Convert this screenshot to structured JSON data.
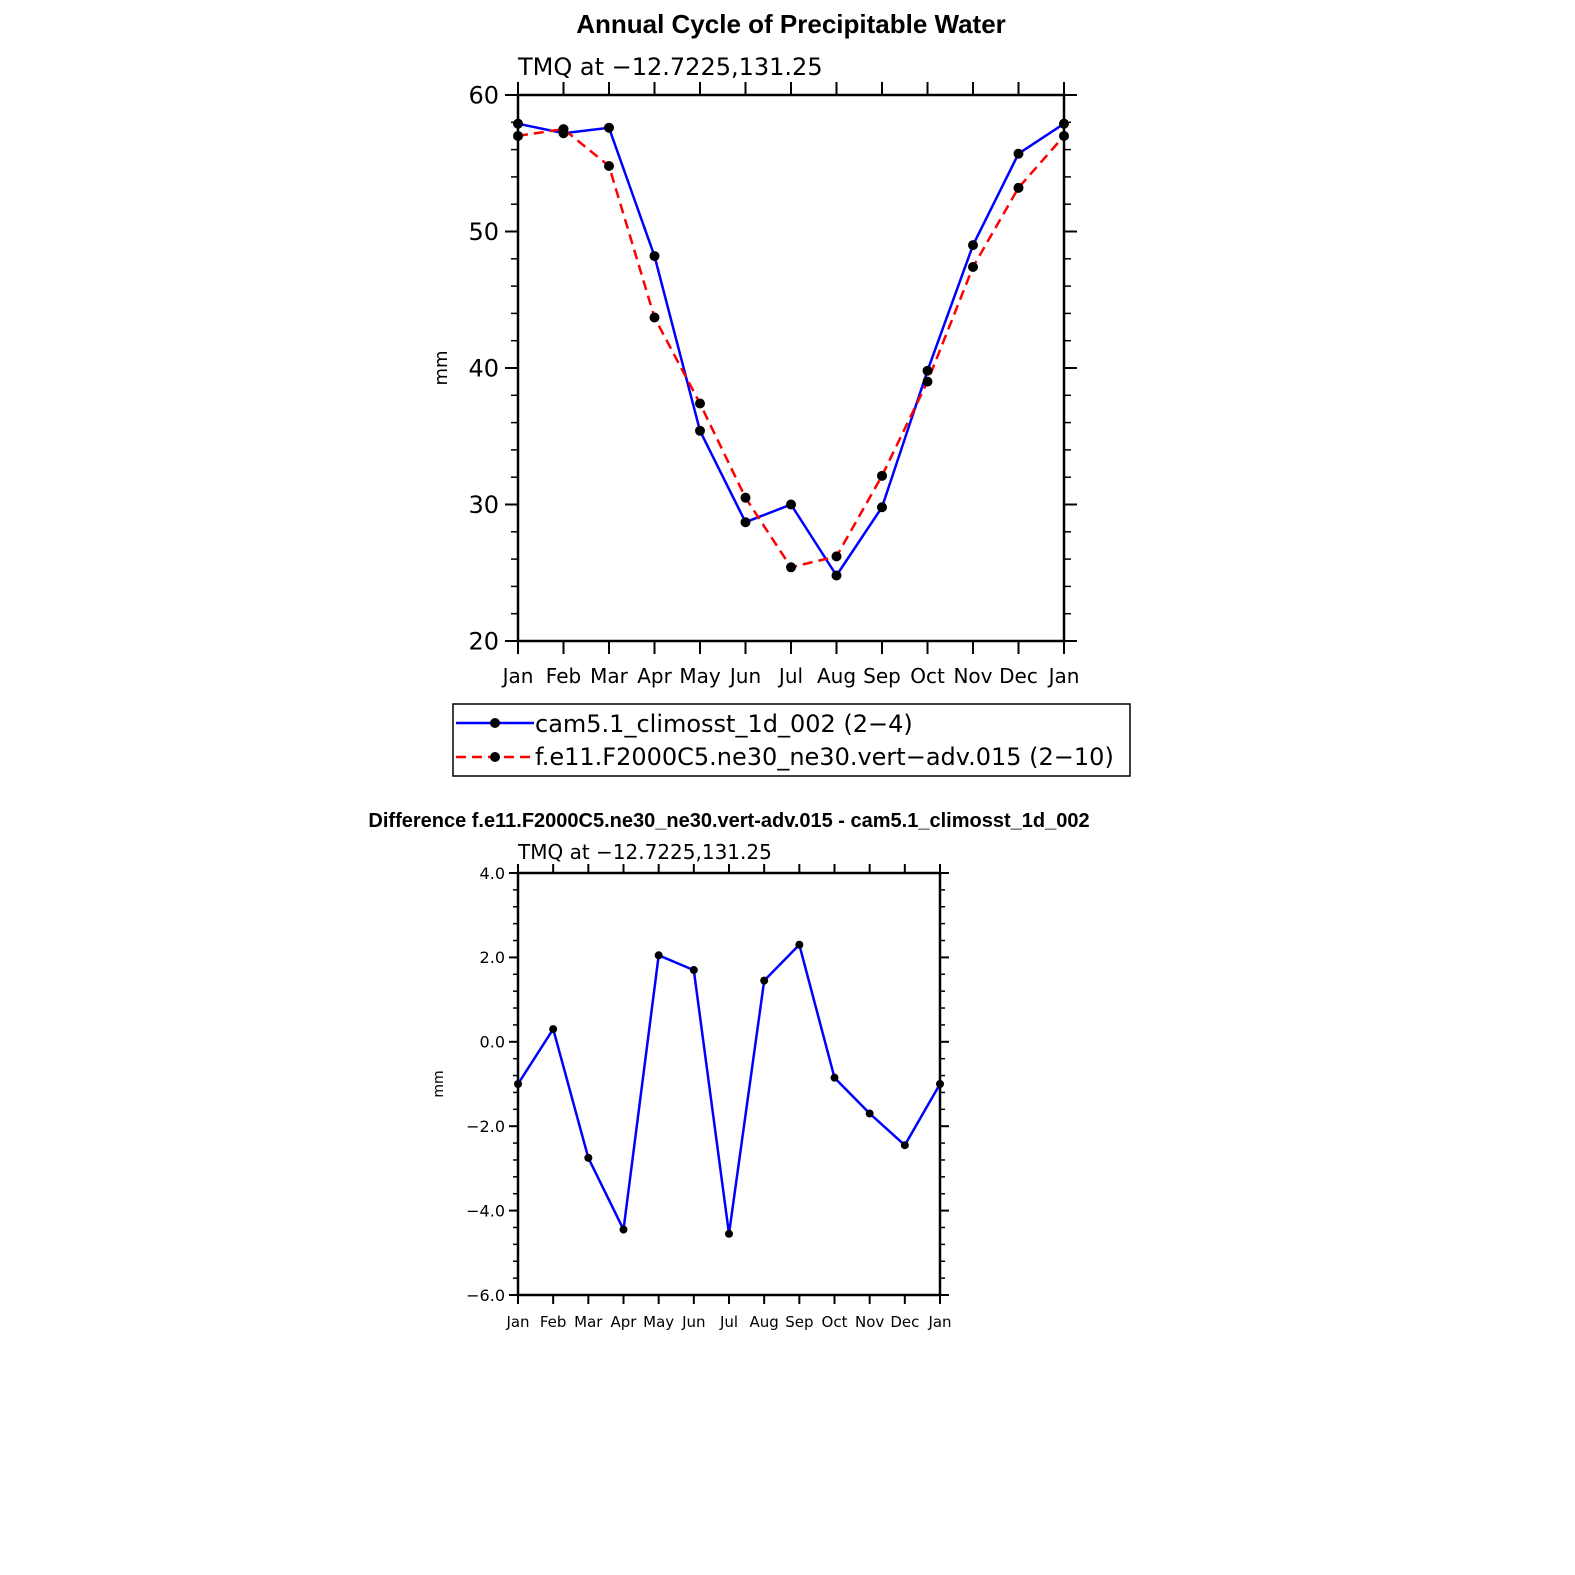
{
  "chart_data": [
    {
      "type": "line",
      "title": "Annual Cycle of Precipitable Water",
      "subtitle": "TMQ at −12.7225,131.25",
      "xlabel": "",
      "ylabel": "mm",
      "categories": [
        "Jan",
        "Feb",
        "Mar",
        "Apr",
        "May",
        "Jun",
        "Jul",
        "Aug",
        "Sep",
        "Oct",
        "Nov",
        "Dec",
        "Jan"
      ],
      "ylim": [
        20,
        60
      ],
      "yticks": [
        "20",
        "30",
        "40",
        "50",
        "60"
      ],
      "series": [
        {
          "name": "cam5.1_climosst_1d_002 (2−4)",
          "color": "#0000ff",
          "dash": "solid",
          "values": [
            57.9,
            57.2,
            57.6,
            48.2,
            35.4,
            28.7,
            30.0,
            24.8,
            29.8,
            39.8,
            49.0,
            55.7,
            57.9
          ]
        },
        {
          "name": "f.e11.F2000C5.ne30_ne30.vert−adv.015 (2−10)",
          "color": "#ff0000",
          "dash": "dashed",
          "values": [
            57.0,
            57.5,
            54.8,
            43.7,
            37.4,
            30.5,
            25.4,
            26.2,
            32.1,
            39.0,
            47.4,
            53.2,
            57.0
          ]
        }
      ],
      "grid": false,
      "legend": "below"
    },
    {
      "type": "line",
      "title": "Difference f.e11.F2000C5.ne30_ne30.vert-adv.015 - cam5.1_climosst_1d_002",
      "subtitle": "TMQ at −12.7225,131.25",
      "xlabel": "",
      "ylabel": "mm",
      "categories": [
        "Jan",
        "Feb",
        "Mar",
        "Apr",
        "May",
        "Jun",
        "Jul",
        "Aug",
        "Sep",
        "Oct",
        "Nov",
        "Dec",
        "Jan"
      ],
      "ylim": [
        -6,
        4
      ],
      "yticks": [
        "−6.0",
        "−4.0",
        "−2.0",
        "0.0",
        "2.0",
        "4.0"
      ],
      "series": [
        {
          "color": "#0000ff",
          "dash": "solid",
          "values": [
            -1.0,
            0.3,
            -2.75,
            -4.45,
            2.05,
            1.7,
            -4.55,
            1.45,
            2.3,
            -0.85,
            -1.7,
            -2.45,
            -1.0
          ]
        }
      ],
      "grid": false
    }
  ]
}
